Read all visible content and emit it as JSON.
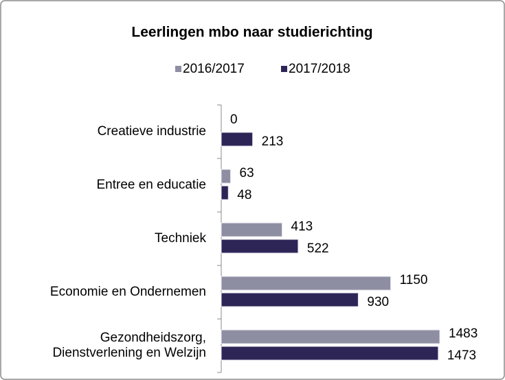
{
  "chart_data": {
    "type": "bar",
    "orientation": "horizontal",
    "title": "Leerlingen mbo naar studierichting",
    "categories": [
      "Creatieve industrie",
      "Entree en educatie",
      "Techniek",
      "Economie en Ondernemen",
      "Gezondheidszorg,\nDienstverlening en Welzijn"
    ],
    "series": [
      {
        "name": "2016/2017",
        "color": "#8e8ea3",
        "values": [
          0,
          63,
          413,
          1150,
          1483
        ]
      },
      {
        "name": "2017/2018",
        "color": "#2e2557",
        "values": [
          213,
          48,
          522,
          930,
          1473
        ]
      }
    ],
    "legend": "top"
  }
}
